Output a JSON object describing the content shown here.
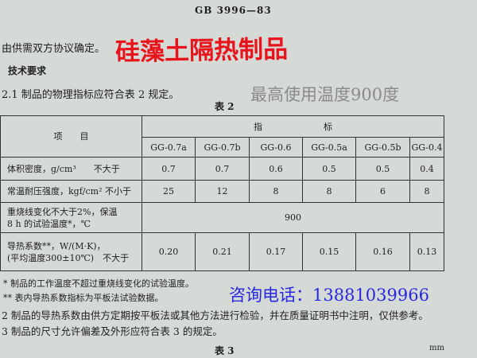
{
  "header": {
    "code": "GB 3996—83"
  },
  "intro": "由供需双方协议确定。",
  "overlays": {
    "product": "硅藻土隔热制品",
    "max_temp": "最高使用温度900度",
    "phone": "咨询电话：13881039966"
  },
  "section": {
    "title": "技术要求",
    "clause": "2.1  制品的物理指标应符合表 2 规定。"
  },
  "table": {
    "caption": "表 2",
    "item_header": "项　　目",
    "index_header": "指　　　　　　　标",
    "grades": [
      "GG-0.7a",
      "GG-0.7b",
      "GG-0.6",
      "GG-0.5a",
      "GG-0.5b",
      "GG-0.4"
    ],
    "rows": [
      {
        "label": [
          "体积密度，g/cm³　　不大于"
        ],
        "values": [
          "0.7",
          "0.7",
          "0.6",
          "0.5",
          "0.5",
          "0.4"
        ]
      },
      {
        "label": [
          "常温耐压强度，kgf/cm² 不小于"
        ],
        "values": [
          "25",
          "12",
          "8",
          "8",
          "6",
          "8"
        ]
      },
      {
        "label": [
          "重烧线变化不大于2%，保温",
          "8 h 的试验温度*，℃"
        ],
        "values": [
          "900"
        ]
      },
      {
        "label": [
          "导热系数**，W/(M·K)，",
          "(平均温度300±10℃)　不大于"
        ],
        "values": [
          "0.20",
          "0.21",
          "0.17",
          "0.15",
          "0.16",
          "0.13"
        ]
      }
    ]
  },
  "notes": [
    "*  制品的工作温度不超过重烧线变化的试验温度。",
    "** 表内导热系数指标为平板法试验数据。"
  ],
  "clauses": [
    "2  制品的导热系数由供方定期按平板法或其他方法进行检验，并在质量证明书中注明，仅供参考。",
    "3  制品的尺寸允许偏差及外形应符合表 3 的规定。"
  ],
  "next_caption": "表 3",
  "unit": "mm"
}
